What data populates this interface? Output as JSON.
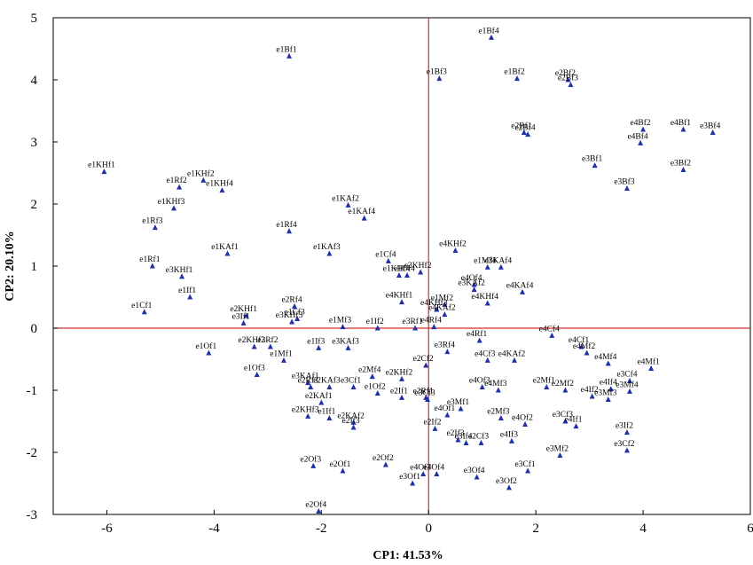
{
  "chart_data": {
    "type": "scatter",
    "xlabel": "CP1: 41.53%",
    "ylabel": "CP2: 20.10%",
    "xlim": [
      -7,
      6
    ],
    "ylim": [
      -3,
      5
    ],
    "xticks": [
      "-6",
      "-4",
      "-2",
      "0",
      "2",
      "4",
      "6"
    ],
    "yticks": [
      "-3",
      "-2",
      "-1",
      "0",
      "1",
      "2",
      "3",
      "4",
      "5"
    ],
    "grid": false,
    "reference_lines": {
      "x": 0,
      "y": 0,
      "color": "#d32f2f"
    },
    "marker_color": "#1f2fa8",
    "points": [
      {
        "label": "e1Bf4",
        "x": 1.17,
        "y": 4.68
      },
      {
        "label": "e1Bf1",
        "x": -2.6,
        "y": 4.38
      },
      {
        "label": "e1Bf3",
        "x": 0.2,
        "y": 4.02
      },
      {
        "label": "e1Bf2",
        "x": 1.65,
        "y": 4.02
      },
      {
        "label": "e2Bf2",
        "x": 2.6,
        "y": 4.0
      },
      {
        "label": "e2Bf3",
        "x": 2.65,
        "y": 3.92
      },
      {
        "label": "e4Bf2",
        "x": 4.0,
        "y": 3.2
      },
      {
        "label": "e4Bf1",
        "x": 4.75,
        "y": 3.2
      },
      {
        "label": "e3Bf4",
        "x": 5.3,
        "y": 3.15
      },
      {
        "label": "e2Bf1",
        "x": 1.78,
        "y": 3.15
      },
      {
        "label": "e2Bf4",
        "x": 1.85,
        "y": 3.12
      },
      {
        "label": "e4Bf4",
        "x": 3.95,
        "y": 2.98
      },
      {
        "label": "e3Bf1",
        "x": 3.1,
        "y": 2.62
      },
      {
        "label": "e3Bf2",
        "x": 4.75,
        "y": 2.55
      },
      {
        "label": "e3Bf3",
        "x": 3.7,
        "y": 2.25
      },
      {
        "label": "e1KHf1",
        "x": -6.05,
        "y": 2.52
      },
      {
        "label": "e1KHf2",
        "x": -4.2,
        "y": 2.38
      },
      {
        "label": "e1Rf2",
        "x": -4.65,
        "y": 2.27
      },
      {
        "label": "e1KHf4",
        "x": -3.85,
        "y": 2.22
      },
      {
        "label": "e1KHf3",
        "x": -4.75,
        "y": 1.93
      },
      {
        "label": "e1KAf2",
        "x": -1.5,
        "y": 1.98
      },
      {
        "label": "e1KAf4",
        "x": -1.2,
        "y": 1.77
      },
      {
        "label": "e1Rf3",
        "x": -5.1,
        "y": 1.62
      },
      {
        "label": "e1Rf4",
        "x": -2.6,
        "y": 1.56
      },
      {
        "label": "e1KAf1",
        "x": -3.75,
        "y": 1.2
      },
      {
        "label": "e1KAf3",
        "x": -1.85,
        "y": 1.2
      },
      {
        "label": "e1Rf1",
        "x": -5.15,
        "y": 1.0
      },
      {
        "label": "e3KHf1",
        "x": -4.6,
        "y": 0.83
      },
      {
        "label": "e1If1",
        "x": -4.45,
        "y": 0.5
      },
      {
        "label": "e1Cf1",
        "x": -5.3,
        "y": 0.26
      },
      {
        "label": "e4KHf2",
        "x": 0.5,
        "y": 1.25
      },
      {
        "label": "e1Cf4",
        "x": -0.75,
        "y": 1.08
      },
      {
        "label": "e1Mf4",
        "x": 1.1,
        "y": 0.98
      },
      {
        "label": "e3KAf4",
        "x": 1.35,
        "y": 0.98
      },
      {
        "label": "e3KHf2",
        "x": -0.15,
        "y": 0.9
      },
      {
        "label": "e1KHf4",
        "x": -0.55,
        "y": 0.85
      },
      {
        "label": "e1Of4",
        "x": -0.4,
        "y": 0.85
      },
      {
        "label": "e4Of4",
        "x": 0.85,
        "y": 0.7
      },
      {
        "label": "e3KAf2",
        "x": 0.85,
        "y": 0.62
      },
      {
        "label": "e4KAf4",
        "x": 1.75,
        "y": 0.58
      },
      {
        "label": "e4KHf1",
        "x": -0.5,
        "y": 0.42
      },
      {
        "label": "e4KHf4",
        "x": 1.1,
        "y": 0.4
      },
      {
        "label": "e1Mf2",
        "x": 0.3,
        "y": 0.38
      },
      {
        "label": "e4KHf3",
        "x": 0.15,
        "y": 0.3
      },
      {
        "label": "e4KAf2",
        "x": 0.3,
        "y": 0.22
      },
      {
        "label": "e2Rf4",
        "x": -2.5,
        "y": 0.35
      },
      {
        "label": "e2KHf1",
        "x": -3.4,
        "y": 0.2
      },
      {
        "label": "e1Cf3",
        "x": -2.45,
        "y": 0.15
      },
      {
        "label": "e3KHf3",
        "x": -2.55,
        "y": 0.1
      },
      {
        "label": "e3If1",
        "x": -3.45,
        "y": 0.08
      },
      {
        "label": "e1Mf3",
        "x": -1.6,
        "y": 0.02
      },
      {
        "label": "e1If2",
        "x": -0.95,
        "y": 0.0
      },
      {
        "label": "e3Rf1",
        "x": -0.25,
        "y": 0.0
      },
      {
        "label": "e4Rf4",
        "x": 0.1,
        "y": 0.02
      },
      {
        "label": "e4Cf4",
        "x": 2.3,
        "y": -0.12
      },
      {
        "label": "e4Rf1",
        "x": 0.95,
        "y": -0.2
      },
      {
        "label": "e4Cf1",
        "x": 2.85,
        "y": -0.3
      },
      {
        "label": "e4Mf2",
        "x": 2.95,
        "y": -0.4
      },
      {
        "label": "e3Rf4",
        "x": 0.35,
        "y": -0.38
      },
      {
        "label": "e1Of1",
        "x": -4.1,
        "y": -0.4
      },
      {
        "label": "e2KHf2",
        "x": -3.25,
        "y": -0.3
      },
      {
        "label": "e3Rf2",
        "x": -2.95,
        "y": -0.3
      },
      {
        "label": "e1Mf1",
        "x": -2.7,
        "y": -0.52
      },
      {
        "label": "e1If3",
        "x": -2.05,
        "y": -0.32
      },
      {
        "label": "e3KAf3",
        "x": -1.5,
        "y": -0.32
      },
      {
        "label": "e4Cf3",
        "x": 1.1,
        "y": -0.52
      },
      {
        "label": "e4KAf2",
        "x": 1.6,
        "y": -0.52
      },
      {
        "label": "e4Mf4",
        "x": 3.35,
        "y": -0.57
      },
      {
        "label": "e4Mf1",
        "x": 4.15,
        "y": -0.65
      },
      {
        "label": "e1Of3",
        "x": -3.2,
        "y": -0.75
      },
      {
        "label": "e2Cf2",
        "x": -0.05,
        "y": -0.6
      },
      {
        "label": "e2Mf4",
        "x": -1.05,
        "y": -0.78
      },
      {
        "label": "e2KHf2",
        "x": -0.5,
        "y": -0.82
      },
      {
        "label": "e3KAf1",
        "x": -2.25,
        "y": -0.88
      },
      {
        "label": "e2Rf3",
        "x": -2.2,
        "y": -0.95
      },
      {
        "label": "e2KAf3",
        "x": -1.85,
        "y": -0.95
      },
      {
        "label": "e3Cf1",
        "x": -1.4,
        "y": -0.95
      },
      {
        "label": "e1Of2",
        "x": -0.95,
        "y": -1.05
      },
      {
        "label": "e2If1",
        "x": -0.5,
        "y": -1.12
      },
      {
        "label": "e4Of3",
        "x": 1.0,
        "y": -0.95
      },
      {
        "label": "e4Mf3",
        "x": 1.3,
        "y": -1.0
      },
      {
        "label": "e2Mf1",
        "x": 2.2,
        "y": -0.95
      },
      {
        "label": "e2Mf2",
        "x": 2.55,
        "y": -1.0
      },
      {
        "label": "e3Cf4",
        "x": 3.75,
        "y": -0.85
      },
      {
        "label": "e4If4",
        "x": 3.4,
        "y": -0.98
      },
      {
        "label": "e3Mf4",
        "x": 3.75,
        "y": -1.02
      },
      {
        "label": "e4If2",
        "x": 3.05,
        "y": -1.1
      },
      {
        "label": "e3Mf3",
        "x": 3.35,
        "y": -1.15
      },
      {
        "label": "e2Rf1",
        "x": -0.05,
        "y": -1.12
      },
      {
        "label": "e3Cf3",
        "x": -0.02,
        "y": -1.15
      },
      {
        "label": "e2KAf1",
        "x": -2.0,
        "y": -1.2
      },
      {
        "label": "e3Mf1",
        "x": 0.6,
        "y": -1.3
      },
      {
        "label": "e4Of1",
        "x": 0.35,
        "y": -1.4
      },
      {
        "label": "e2Mf3",
        "x": 1.35,
        "y": -1.45
      },
      {
        "label": "e4Of2",
        "x": 1.8,
        "y": -1.55
      },
      {
        "label": "e3Cf3",
        "x": 2.55,
        "y": -1.5
      },
      {
        "label": "e4If1",
        "x": 2.75,
        "y": -1.58
      },
      {
        "label": "e2KHf3",
        "x": -2.25,
        "y": -1.42
      },
      {
        "label": "e1If1",
        "x": -1.85,
        "y": -1.45
      },
      {
        "label": "e2KAf2",
        "x": -1.4,
        "y": -1.52
      },
      {
        "label": "e2If3",
        "x": -1.4,
        "y": -1.6
      },
      {
        "label": "e2If2",
        "x": 0.12,
        "y": -1.62
      },
      {
        "label": "e2If3",
        "x": 0.55,
        "y": -1.8
      },
      {
        "label": "e3If4",
        "x": 0.7,
        "y": -1.85
      },
      {
        "label": "e2Cf3",
        "x": 0.98,
        "y": -1.85
      },
      {
        "label": "e4If3",
        "x": 1.55,
        "y": -1.82
      },
      {
        "label": "e3If2",
        "x": 3.7,
        "y": -1.68
      },
      {
        "label": "e3Mf2",
        "x": 2.45,
        "y": -2.05
      },
      {
        "label": "e3Cf2",
        "x": 3.7,
        "y": -1.97
      },
      {
        "label": "e2Of3",
        "x": -2.15,
        "y": -2.22
      },
      {
        "label": "e2Of1",
        "x": -1.6,
        "y": -2.3
      },
      {
        "label": "e2Of2",
        "x": -0.8,
        "y": -2.2
      },
      {
        "label": "e3Of1",
        "x": -0.3,
        "y": -2.5
      },
      {
        "label": "e4Of3",
        "x": -0.1,
        "y": -2.35
      },
      {
        "label": "e4Of4",
        "x": 0.15,
        "y": -2.35
      },
      {
        "label": "e3Of4",
        "x": 0.9,
        "y": -2.4
      },
      {
        "label": "e3Cf1",
        "x": 1.85,
        "y": -2.3
      },
      {
        "label": "e3Of2",
        "x": 1.5,
        "y": -2.57
      },
      {
        "label": "e2Of4",
        "x": -2.05,
        "y": -2.95
      }
    ]
  }
}
